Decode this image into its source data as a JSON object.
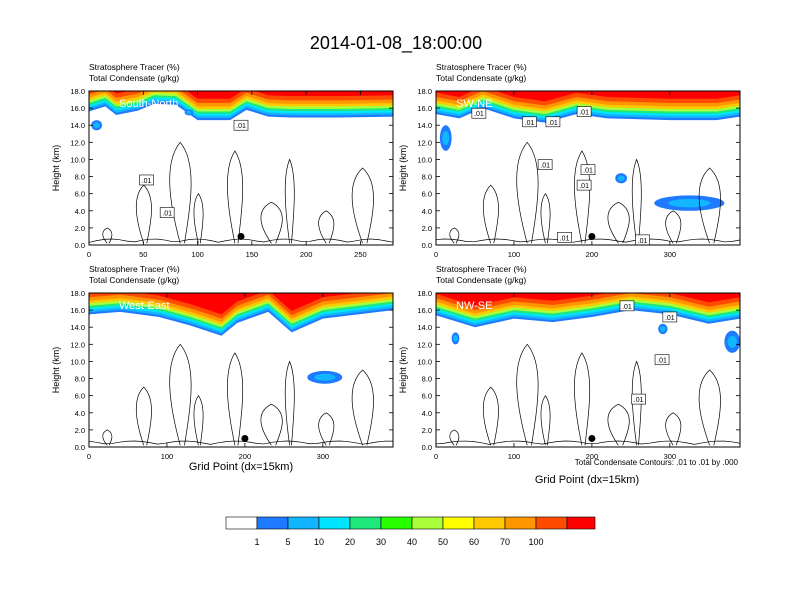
{
  "title": "2014-01-08_18:00:00",
  "panel_headers": {
    "line1": "Stratosphere Tracer   (%)",
    "line2": "Total Condensate   (g/kg)"
  },
  "ylabel": "Height (km)",
  "xlabel": "Grid Point (dx=15km)",
  "contour_note": "Total Condensate Contours: .01 to .01 by .000",
  "colors": {
    "levels": [
      "#ffffff",
      "#1e7bff",
      "#12b5ff",
      "#00e5ff",
      "#1ee87a",
      "#28ff00",
      "#a9ff3a",
      "#ffff00",
      "#ffc800",
      "#ff9600",
      "#ff4b00",
      "#ff0000"
    ],
    "contour": "#000000",
    "dot": "#000000"
  },
  "colorbar": {
    "labels": [
      "1",
      "5",
      "10",
      "20",
      "30",
      "40",
      "50",
      "60",
      "70",
      "100"
    ]
  },
  "chart_data": [
    {
      "type": "heatmap",
      "name": "South-North",
      "x_range": [
        0,
        280
      ],
      "x_ticks": [
        "0",
        "50",
        "100",
        "150",
        "200",
        "250"
      ],
      "x_tick_values": [
        0,
        50,
        100,
        150,
        200,
        250
      ],
      "ylim": [
        0,
        18
      ],
      "y_ticks": [
        "0.0",
        "2.0",
        "4.0",
        "6.0",
        "8.0",
        "10.0",
        "12.0",
        "14.0",
        "16.0",
        "18.0"
      ],
      "tropopause": [
        [
          0,
          15.6
        ],
        [
          15,
          16.2
        ],
        [
          25,
          15.2
        ],
        [
          45,
          15.7
        ],
        [
          60,
          16.5
        ],
        [
          80,
          16.4
        ],
        [
          100,
          14.6
        ],
        [
          130,
          14.6
        ],
        [
          145,
          15.8
        ],
        [
          165,
          15.0
        ],
        [
          185,
          14.9
        ],
        [
          230,
          14.9
        ],
        [
          280,
          15.0
        ]
      ],
      "blue_patches": [
        [
          2,
          13.4,
          10,
          1.2
        ],
        [
          88,
          15.2,
          8,
          0.6
        ]
      ],
      "contour_labels": [
        {
          "x": 140,
          "y": 14.0,
          "text": ".01"
        },
        {
          "x": 53,
          "y": 7.6,
          "text": ".01"
        },
        {
          "x": 72,
          "y": 3.8,
          "text": ".01"
        }
      ],
      "dot": [
        140,
        1.0
      ]
    },
    {
      "type": "heatmap",
      "name": "SW-NE",
      "x_range": [
        0,
        390
      ],
      "x_ticks": [
        "0",
        "100",
        "200",
        "300"
      ],
      "x_tick_values": [
        0,
        100,
        200,
        300
      ],
      "ylim": [
        0,
        18
      ],
      "y_ticks": [
        "0.0",
        "2.0",
        "4.0",
        "6.0",
        "8.0",
        "10.0",
        "12.0",
        "14.0",
        "16.0",
        "18.0"
      ],
      "tropopause": [
        [
          0,
          15.3
        ],
        [
          30,
          14.8
        ],
        [
          60,
          16.0
        ],
        [
          100,
          14.8
        ],
        [
          140,
          14.3
        ],
        [
          180,
          15.3
        ],
        [
          220,
          14.8
        ],
        [
          300,
          14.6
        ],
        [
          360,
          14.6
        ],
        [
          390,
          15.0
        ]
      ],
      "blue_patches": [
        [
          5,
          11.0,
          15,
          3.0
        ],
        [
          230,
          7.2,
          15,
          1.2
        ],
        [
          280,
          4.0,
          90,
          1.8
        ]
      ],
      "contour_labels": [
        {
          "x": 120,
          "y": 14.4,
          "text": ".01"
        },
        {
          "x": 150,
          "y": 14.4,
          "text": ".01"
        },
        {
          "x": 190,
          "y": 15.6,
          "text": ".01"
        },
        {
          "x": 55,
          "y": 15.4,
          "text": ".01"
        },
        {
          "x": 195,
          "y": 8.8,
          "text": ".01"
        },
        {
          "x": 140,
          "y": 9.4,
          "text": ".01"
        },
        {
          "x": 190,
          "y": 7.0,
          "text": ".01"
        },
        {
          "x": 165,
          "y": 0.9,
          "text": ".01"
        },
        {
          "x": 265,
          "y": 0.6,
          "text": ".01"
        }
      ],
      "dot": [
        200,
        1.0
      ]
    },
    {
      "type": "heatmap",
      "name": "West-East",
      "x_range": [
        0,
        390
      ],
      "x_ticks": [
        "0",
        "100",
        "200",
        "300"
      ],
      "x_tick_values": [
        0,
        100,
        200,
        300
      ],
      "ylim": [
        0,
        18
      ],
      "y_ticks": [
        "0.0",
        "2.0",
        "4.0",
        "6.0",
        "8.0",
        "10.0",
        "12.0",
        "14.0",
        "16.0",
        "18.0"
      ],
      "tropopause": [
        [
          0,
          15.5
        ],
        [
          40,
          15.8
        ],
        [
          90,
          15.2
        ],
        [
          130,
          14.2
        ],
        [
          170,
          13.0
        ],
        [
          190,
          14.5
        ],
        [
          230,
          15.8
        ],
        [
          260,
          13.4
        ],
        [
          300,
          15.0
        ],
        [
          390,
          16.0
        ]
      ],
      "blue_patches": [
        [
          280,
          7.4,
          45,
          1.5
        ]
      ],
      "contour_labels": [],
      "dot": [
        200,
        1.0
      ]
    },
    {
      "type": "heatmap",
      "name": "NW-SE",
      "x_range": [
        0,
        390
      ],
      "x_ticks": [
        "0",
        "100",
        "200",
        "300"
      ],
      "x_tick_values": [
        0,
        100,
        200,
        300
      ],
      "ylim": [
        0,
        18
      ],
      "y_ticks": [
        "0.0",
        "2.0",
        "4.0",
        "6.0",
        "8.0",
        "10.0",
        "12.0",
        "14.0",
        "16.0",
        "18.0"
      ],
      "tropopause": [
        [
          0,
          15.4
        ],
        [
          50,
          14.0
        ],
        [
          100,
          15.0
        ],
        [
          150,
          14.6
        ],
        [
          200,
          15.2
        ],
        [
          250,
          16.0
        ],
        [
          300,
          15.5
        ],
        [
          350,
          14.4
        ],
        [
          390,
          15.0
        ]
      ],
      "blue_patches": [
        [
          20,
          12.0,
          10,
          1.4
        ],
        [
          285,
          13.2,
          12,
          1.2
        ],
        [
          370,
          11.0,
          20,
          2.6
        ]
      ],
      "contour_labels": [
        {
          "x": 245,
          "y": 16.5,
          "text": ".01"
        },
        {
          "x": 300,
          "y": 15.2,
          "text": ".01"
        },
        {
          "x": 290,
          "y": 10.2,
          "text": ".01"
        },
        {
          "x": 260,
          "y": 5.6,
          "text": ".01"
        }
      ],
      "dot": [
        200,
        1.0
      ]
    }
  ]
}
